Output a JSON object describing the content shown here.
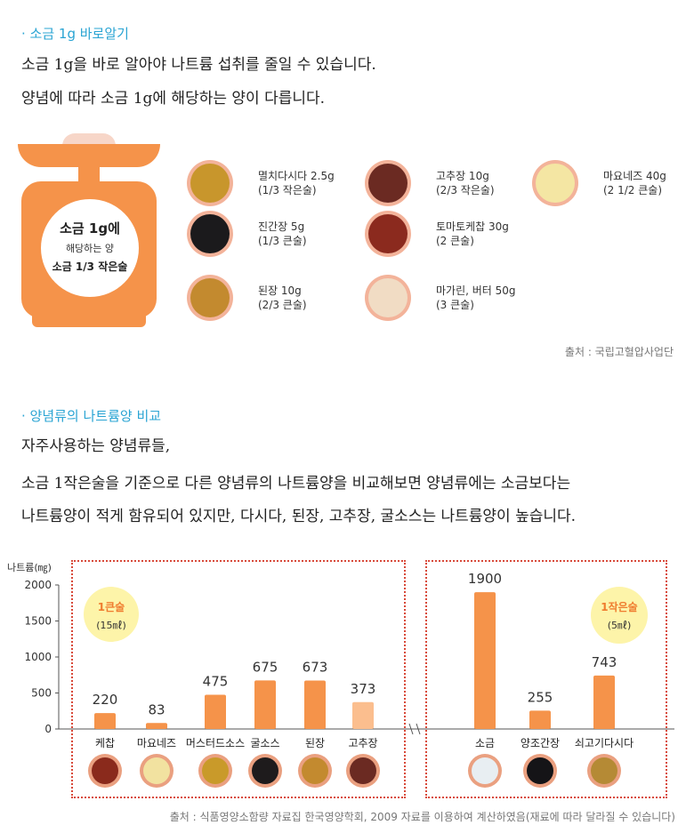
{
  "section1": {
    "title": "· 소금 1g 바로알기",
    "line1": "소금 1g을 바로 알아야 나트륨 섭취를 줄일 수 있습니다.",
    "line2": "양념에 따라 소금 1g에 해당하는 양이 다릅니다."
  },
  "scale": {
    "line1": "소금 1g에",
    "line2": "해당하는 양",
    "line3": "소금 1/3 작은술"
  },
  "condiments": [
    {
      "name": "멸치다시다  2.5g",
      "amount": "(1/3 작은술)",
      "color": "#c8962c"
    },
    {
      "name": "진간장 5g",
      "amount": "(1/3 큰술)",
      "color": "#1b1a1c"
    },
    {
      "name": "된장 10g",
      "amount": "(2/3 큰술)",
      "color": "#c38a2f"
    },
    {
      "name": "고추장 10g",
      "amount": "(2/3 작은술)",
      "color": "#6b2a22"
    },
    {
      "name": "토마토케찹 30g",
      "amount": "(2 큰술)",
      "color": "#8b2a1e"
    },
    {
      "name": "마가린, 버터 50g",
      "amount": "(3 큰술)",
      "color": "#f1dcc4"
    },
    {
      "name": "마요네즈 40g",
      "amount": "(2  1/2 큰술)",
      "color": "#f4e6a3"
    }
  ],
  "source1": "출처 : 국립고혈압사업단",
  "section2": {
    "title": "· 양념류의 나트륨양 비교",
    "line1": "자주사용하는 양념류들,",
    "line2": "소금 1작은술을 기준으로 다른 양념류의 나트륨양을 비교해보면 양념류에는 소금보다는",
    "line3": "나트륨양이 적게 함유되어 있지만, 다시다, 된장, 고추장, 굴소스는 나트륨양이 높습니다."
  },
  "badges": {
    "left": {
      "line1": "1큰술",
      "line2": "(15㎖)"
    },
    "right": {
      "line1": "1작은술",
      "line2": "(5㎖)"
    }
  },
  "chart_data": {
    "type": "bar",
    "title": "",
    "ylabel": "나트륨(㎎)",
    "xlabel": "",
    "ylim": [
      0,
      2000
    ],
    "yticks": [
      "0",
      "500",
      "1000",
      "1500",
      "2000"
    ],
    "groups": [
      "1큰술 (15㎖)",
      "1작은술 (5㎖)"
    ],
    "categories": [
      "케찹",
      "마요네즈",
      "머스터드소스",
      "굴소스",
      "된장",
      "고추장",
      "소금",
      "양조간장",
      "쇠고기다시다"
    ],
    "values": [
      220,
      83,
      475,
      675,
      673,
      373,
      1900,
      255,
      743
    ],
    "bar_colors": [
      "#f5934a",
      "#f5934a",
      "#f5934a",
      "#f5934a",
      "#f5934a",
      "#fbbe8e",
      "#f5934a",
      "#f5934a",
      "#f5934a"
    ],
    "food_colors": [
      "#8a2a1c",
      "#f2e2a0",
      "#c99a2a",
      "#1e1b1c",
      "#c38a2f",
      "#6b2a22",
      "#e8eef2",
      "#151417",
      "#b58a35"
    ]
  },
  "source2": "출처 : 식품영양소함량 자료집  한국영양학회, 2009 자료를 이용하여 계산하였음(재료에 따라 달라질 수 있습니다)"
}
